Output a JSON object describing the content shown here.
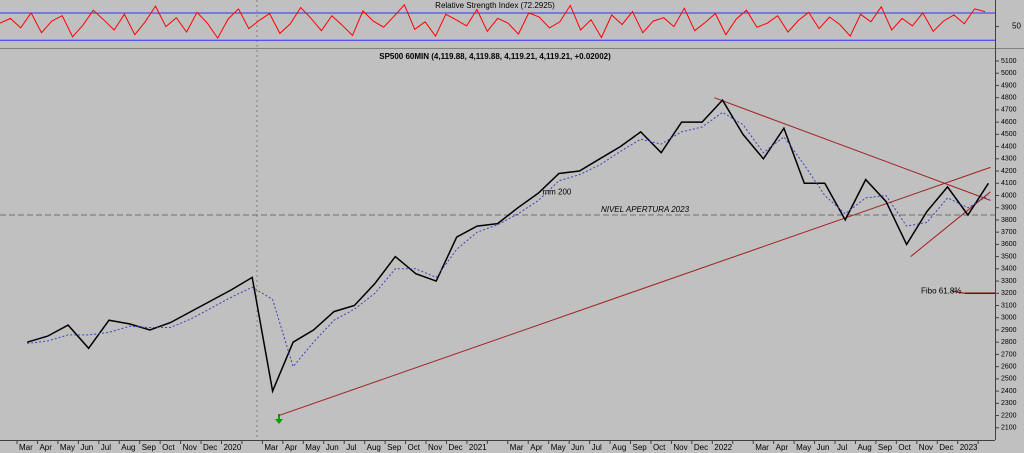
{
  "chart_data": [
    {
      "type": "line",
      "title": "Relative Strength Index (72.2925)",
      "color": "#ff0000",
      "values": [
        55,
        62,
        48,
        70,
        41,
        58,
        66,
        35,
        52,
        74,
        60,
        45,
        68,
        38,
        57,
        80,
        50,
        63,
        42,
        71,
        55,
        33,
        61,
        76,
        47,
        59,
        69,
        40,
        54,
        78,
        62,
        44,
        66,
        52,
        37,
        73,
        58,
        49,
        65,
        82,
        46,
        57,
        36,
        68,
        60,
        51,
        75,
        43,
        62,
        55,
        39,
        70,
        64,
        48,
        57,
        81,
        45,
        60,
        34,
        67,
        53,
        72,
        41,
        58,
        63,
        50,
        77,
        44,
        56,
        69,
        38,
        61,
        74,
        49,
        55,
        66,
        42,
        59,
        71,
        47,
        64,
        53,
        36,
        68,
        57,
        79,
        45,
        62,
        51,
        70,
        43,
        58,
        67,
        54,
        76,
        72
      ],
      "ylim": [
        20,
        89
      ],
      "yticks": [
        50
      ],
      "levels": [
        30,
        70
      ],
      "level_color": "#3030ff"
    },
    {
      "type": "line",
      "title": "SP500 60MIN (4,119.88, 4,119.88, 4,119.21, 4,119.21, +0.02002)",
      "categories": [
        "Mar",
        "Apr",
        "May",
        "Jun",
        "Jul",
        "Aug",
        "Sep",
        "Oct",
        "Nov",
        "Dec",
        "2020",
        null,
        "Mar",
        "Apr",
        "May",
        "Jun",
        "Jul",
        "Aug",
        "Sep",
        "Oct",
        "Nov",
        "Dec",
        "2021",
        null,
        "Mar",
        "Apr",
        "May",
        "Jun",
        "Jul",
        "Aug",
        "Sep",
        "Oct",
        "Nov",
        "Dec",
        "2022",
        null,
        "Mar",
        "Apr",
        "May",
        "Jun",
        "Jul",
        "Aug",
        "Sep",
        "Oct",
        "Nov",
        "Dec",
        "2023",
        null
      ],
      "series": [
        {
          "color": "#000000",
          "values": [
            2800,
            2850,
            2940,
            2750,
            2980,
            2950,
            2900,
            2960,
            3050,
            3140,
            3230,
            3330,
            2400,
            2800,
            2900,
            3050,
            3100,
            3280,
            3500,
            3360,
            3300,
            3660,
            3750,
            3770,
            3900,
            4020,
            4180,
            4200,
            4300,
            4400,
            4520,
            4350,
            4600,
            4600,
            4780,
            4500,
            4300,
            4550,
            4100,
            4100,
            3800,
            4130,
            3950,
            3600,
            3870,
            4070,
            3840,
            4100
          ]
        },
        {
          "name": "mm 200",
          "color": "#4040c0",
          "values": [
            2790,
            2810,
            2860,
            2860,
            2880,
            2930,
            2920,
            2920,
            2990,
            3080,
            3170,
            3250,
            3150,
            2600,
            2800,
            2980,
            3070,
            3200,
            3400,
            3400,
            3330,
            3560,
            3700,
            3760,
            3850,
            3960,
            4120,
            4170,
            4250,
            4360,
            4460,
            4420,
            4520,
            4560,
            4680,
            4580,
            4350,
            4480,
            4250,
            4000,
            3850,
            3980,
            4000,
            3750,
            3780,
            3980,
            3900,
            4000
          ]
        }
      ],
      "ylim": [
        2000,
        5190
      ],
      "yticks": [
        2100,
        2200,
        2300,
        2400,
        2500,
        2600,
        2700,
        2800,
        2900,
        3000,
        3100,
        3200,
        3300,
        3400,
        3500,
        3600,
        3700,
        3800,
        3900,
        4000,
        4100,
        4200,
        4300,
        4400,
        4500,
        4600,
        4700,
        4800,
        4900,
        5000,
        5100
      ],
      "annotations": [
        {
          "text": "NIVEL APERTURA 2023",
          "value": 3840
        },
        {
          "text": "Fibo 61.8%",
          "value": 3200
        }
      ],
      "trendlines": [
        {
          "from": [
            12.3,
            2200
          ],
          "to": [
            47.1,
            4230
          ]
        },
        {
          "from": [
            33.6,
            4800
          ],
          "to": [
            47.1,
            3960
          ]
        },
        {
          "from": [
            43.2,
            3500
          ],
          "to": [
            47.1,
            4030
          ]
        }
      ],
      "trend_color": "#a02020"
    }
  ]
}
